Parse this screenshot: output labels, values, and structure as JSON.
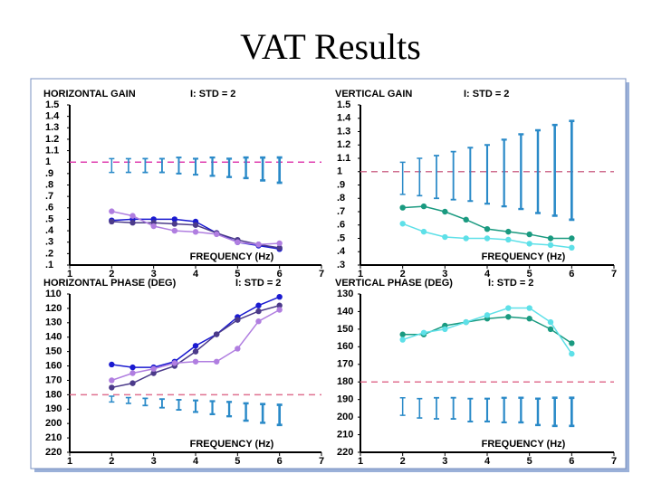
{
  "title": "VAT Results",
  "chart_data": [
    {
      "type": "line",
      "title": "HORIZONTAL GAIN",
      "subtitle": "I: STD = 2",
      "xlabel": "FREQUENCY (Hz)",
      "xlim": [
        1,
        7
      ],
      "xticks": [
        1,
        2,
        3,
        4,
        5,
        6,
        7
      ],
      "ylim": [
        0.1,
        1.5
      ],
      "yticks": [
        1.5,
        1.4,
        1.3,
        1.2,
        1.1,
        1,
        {
          "value": 0.9,
          "label": ".9"
        },
        {
          "value": 0.8,
          "label": ".8"
        },
        {
          "value": 0.7,
          "label": ".7"
        },
        {
          "value": 0.6,
          "label": ".6"
        },
        {
          "value": 0.5,
          "label": ".5"
        },
        {
          "value": 0.4,
          "label": ".4"
        },
        {
          "value": 0.3,
          "label": ".3"
        },
        {
          "value": 0.2,
          "label": ".2"
        },
        {
          "value": 0.1,
          "label": ".1"
        }
      ],
      "ref_line": 1,
      "ref_color": "#e040b0",
      "error_bars": {
        "color": "#2a8ac8",
        "x": [
          2,
          2.4,
          2.8,
          3.2,
          3.6,
          4,
          4.4,
          4.8,
          5.2,
          5.6,
          6
        ],
        "values": [
          0.97,
          0.97,
          0.97,
          0.97,
          0.97,
          0.96,
          0.96,
          0.95,
          0.95,
          0.94,
          0.93
        ],
        "errors": [
          0.06,
          0.06,
          0.06,
          0.06,
          0.07,
          0.07,
          0.08,
          0.08,
          0.09,
          0.1,
          0.11
        ]
      },
      "series": [
        {
          "color": "#1a1ad0",
          "x": [
            2,
            2.5,
            3,
            3.5,
            4,
            4.5,
            5,
            5.5,
            6
          ],
          "values": [
            0.49,
            0.5,
            0.5,
            0.5,
            0.48,
            0.38,
            0.3,
            0.27,
            0.24
          ]
        },
        {
          "color": "#4b3a8a",
          "x": [
            2,
            2.5,
            3,
            3.5,
            4,
            4.5,
            5,
            5.5,
            6
          ],
          "values": [
            0.48,
            0.47,
            0.47,
            0.46,
            0.45,
            0.38,
            0.32,
            0.28,
            0.25
          ]
        },
        {
          "color": "#b07ee0",
          "x": [
            2,
            2.5,
            3,
            3.5,
            4,
            4.5,
            5,
            5.5,
            6
          ],
          "values": [
            0.57,
            0.53,
            0.44,
            0.4,
            0.39,
            0.37,
            0.3,
            0.28,
            0.29
          ]
        }
      ]
    },
    {
      "type": "line",
      "title": "VERTICAL GAIN",
      "subtitle": "I: STD = 2",
      "xlabel": "FREQUENCY (Hz)",
      "xlim": [
        1,
        7
      ],
      "xticks": [
        1,
        2,
        3,
        4,
        5,
        6,
        7
      ],
      "ylim": [
        0.3,
        1.5
      ],
      "yticks": [
        1.5,
        1.4,
        1.3,
        1.2,
        1.1,
        1,
        {
          "value": 0.9,
          "label": ".9"
        },
        {
          "value": 0.8,
          "label": ".8"
        },
        {
          "value": 0.7,
          "label": ".7"
        },
        {
          "value": 0.6,
          "label": ".6"
        },
        {
          "value": 0.5,
          "label": ".5"
        },
        {
          "value": 0.4,
          "label": ".4"
        },
        {
          "value": 0.3,
          "label": ".3"
        }
      ],
      "ref_line": 1,
      "ref_color": "#d07090",
      "error_bars": {
        "color": "#2a8ac8",
        "x": [
          2,
          2.4,
          2.8,
          3.2,
          3.6,
          4,
          4.4,
          4.8,
          5.2,
          5.6,
          6
        ],
        "values": [
          0.95,
          0.96,
          0.96,
          0.97,
          0.98,
          0.98,
          0.99,
          1,
          1,
          1.01,
          1.01
        ],
        "errors": [
          0.12,
          0.14,
          0.16,
          0.18,
          0.2,
          0.22,
          0.25,
          0.28,
          0.31,
          0.34,
          0.37
        ]
      },
      "series": [
        {
          "color": "#1a9a80",
          "x": [
            2,
            2.5,
            3,
            3.5,
            4,
            4.5,
            5,
            5.5,
            6
          ],
          "values": [
            0.73,
            0.74,
            0.7,
            0.64,
            0.57,
            0.55,
            0.53,
            0.5,
            0.5
          ]
        },
        {
          "color": "#5ee0e8",
          "x": [
            2,
            2.5,
            3,
            3.5,
            4,
            4.5,
            5,
            5.5,
            6
          ],
          "values": [
            0.61,
            0.55,
            0.51,
            0.5,
            0.5,
            0.49,
            0.46,
            0.45,
            0.43
          ]
        }
      ]
    },
    {
      "type": "line",
      "title": "HORIZONTAL PHASE (DEG)",
      "subtitle": "I: STD = 2",
      "xlabel": "FREQUENCY (Hz)",
      "xlim": [
        1,
        7
      ],
      "xticks": [
        1,
        2,
        3,
        4,
        5,
        6,
        7
      ],
      "ylim": [
        220,
        110
      ],
      "yticks": [
        110,
        120,
        130,
        140,
        150,
        160,
        170,
        180,
        190,
        200,
        210,
        220
      ],
      "ref_line": 180,
      "ref_color": "#e07090",
      "error_bars": {
        "color": "#2a8ac8",
        "x": [
          2,
          2.4,
          2.8,
          3.2,
          3.6,
          4,
          4.4,
          4.8,
          5.2,
          5.6,
          6
        ],
        "values": [
          183,
          184,
          185,
          186,
          187,
          188,
          189,
          190,
          192,
          193,
          194
        ],
        "errors": [
          2,
          2,
          2.5,
          3,
          3.5,
          4,
          4.5,
          5,
          6,
          6.5,
          7
        ]
      },
      "series": [
        {
          "color": "#1a1ad0",
          "x": [
            2,
            2.5,
            3,
            3.5,
            4,
            4.5,
            5,
            5.5,
            6
          ],
          "values": [
            159,
            161,
            161,
            157,
            146,
            138,
            126,
            118,
            112
          ]
        },
        {
          "color": "#4b3a8a",
          "x": [
            2,
            2.5,
            3,
            3.5,
            4,
            4.5,
            5,
            5.5,
            6
          ],
          "values": [
            175,
            172,
            165,
            160,
            150,
            138,
            128,
            122,
            118
          ]
        },
        {
          "color": "#b07ee0",
          "x": [
            2,
            2.5,
            3,
            3.5,
            4,
            4.5,
            5,
            5.5,
            6
          ],
          "values": [
            170,
            165,
            162,
            158,
            157,
            157,
            148,
            129,
            121
          ]
        }
      ]
    },
    {
      "type": "line",
      "title": "VERTICAL PHASE (DEG)",
      "subtitle": "I: STD = 2",
      "xlabel": "FREQUENCY (Hz)",
      "xlim": [
        1,
        7
      ],
      "xticks": [
        1,
        2,
        3,
        4,
        5,
        6,
        7
      ],
      "ylim": [
        220,
        130
      ],
      "yticks": [
        130,
        140,
        150,
        160,
        170,
        180,
        190,
        200,
        210,
        220
      ],
      "ref_line": 180,
      "ref_color": "#e07090",
      "error_bars": {
        "color": "#2a8ac8",
        "x": [
          2,
          2.4,
          2.8,
          3.2,
          3.6,
          4,
          4.4,
          4.8,
          5.2,
          5.6,
          6
        ],
        "values": [
          194,
          195,
          195,
          195,
          196,
          196,
          196,
          196,
          197,
          197,
          197
        ],
        "errors": [
          5,
          5.5,
          6,
          6,
          6.5,
          6.5,
          7,
          7,
          7.5,
          8,
          8
        ]
      },
      "series": [
        {
          "color": "#1a9a80",
          "x": [
            2,
            2.5,
            3,
            3.5,
            4,
            4.5,
            5,
            5.5,
            6
          ],
          "values": [
            153,
            153,
            148,
            146,
            144,
            143,
            144,
            150,
            158
          ]
        },
        {
          "color": "#5ee0e8",
          "x": [
            2,
            2.5,
            3,
            3.5,
            4,
            4.5,
            5,
            5.5,
            6
          ],
          "values": [
            156,
            152,
            150,
            146,
            142,
            138,
            138,
            146,
            164
          ]
        }
      ]
    }
  ]
}
